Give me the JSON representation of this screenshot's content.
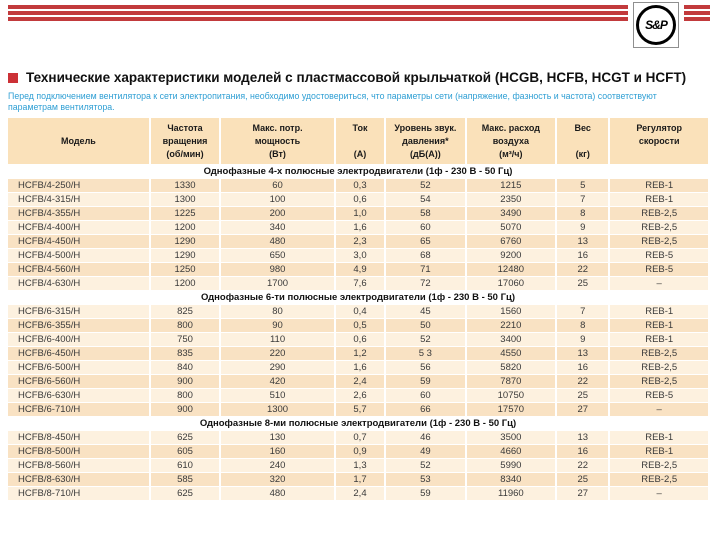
{
  "brand": {
    "logo_text": "S&P"
  },
  "header": {
    "title": "Технические характеристики моделей с пластмассовой крыльчаткой (HCGB, HCFB, HCGT и HCFT)",
    "note": "Перед подключением вентилятора к сети электропитания, необходимо удостовериться, что параметры сети (напряжение, фазность и частота) соответствуют параметрам вентилятора."
  },
  "colors": {
    "accent_red": "#c23a3c",
    "bullet_red": "#cc3136",
    "note_blue": "#2f9fd4",
    "table_header_bg": "#fae1ba",
    "row_dark": "#f9e2c3",
    "row_light": "#fdf1df"
  },
  "table": {
    "columns": [
      {
        "key": "model",
        "lines": [
          "Модель"
        ]
      },
      {
        "key": "speed",
        "lines": [
          "Частота",
          "вращения",
          "(об/мин)"
        ]
      },
      {
        "key": "power",
        "lines": [
          "Макс. потр.",
          "мощность",
          "(Вт)"
        ]
      },
      {
        "key": "current",
        "lines": [
          "Ток",
          "",
          "(А)"
        ]
      },
      {
        "key": "noise",
        "lines": [
          "Уровень звук.",
          "давления*",
          "(дБ(А))"
        ]
      },
      {
        "key": "airflow",
        "lines": [
          "Макс. расход",
          "воздуха",
          "(м³/ч)"
        ]
      },
      {
        "key": "weight",
        "lines": [
          "Вес",
          "",
          "(кг)"
        ]
      },
      {
        "key": "regulator",
        "lines": [
          "Регулятор",
          "скорости"
        ]
      }
    ],
    "sections": [
      {
        "title": "Однофазные 4-х полюсные электродвигатели (1ф - 230 В - 50 Гц)",
        "rows": [
          [
            "HCFB/4-250/H",
            "1330",
            "60",
            "0,3",
            "52",
            "1215",
            "5",
            "REB-1"
          ],
          [
            "HCFB/4-315/H",
            "1300",
            "100",
            "0,6",
            "54",
            "2350",
            "7",
            "REB-1"
          ],
          [
            "HCFB/4-355/H",
            "1225",
            "200",
            "1,0",
            "58",
            "3490",
            "8",
            "REB-2,5"
          ],
          [
            "HCFB/4-400/H",
            "1200",
            "340",
            "1,6",
            "60",
            "5070",
            "9",
            "REB-2,5"
          ],
          [
            "HCFB/4-450/H",
            "1290",
            "480",
            "2,3",
            "65",
            "6760",
            "13",
            "REB-2,5"
          ],
          [
            "HCFB/4-500/H",
            "1290",
            "650",
            "3,0",
            "68",
            "9200",
            "16",
            "REB-5"
          ],
          [
            "HCFB/4-560/H",
            "1250",
            "980",
            "4,9",
            "71",
            "12480",
            "22",
            "REB-5"
          ],
          [
            "HCFB/4-630/H",
            "1200",
            "1700",
            "7,6",
            "72",
            "17060",
            "25",
            "–"
          ]
        ]
      },
      {
        "title": "Однофазные 6-ти полюсные электродвигатели (1ф - 230 В - 50 Гц)",
        "rows": [
          [
            "HCFB/6-315/H",
            "825",
            "80",
            "0,4",
            "45",
            "1560",
            "7",
            "REB-1"
          ],
          [
            "HCFB/6-355/H",
            "800",
            "90",
            "0,5",
            "50",
            "2210",
            "8",
            "REB-1"
          ],
          [
            "HCFB/6-400/H",
            "750",
            "110",
            "0,6",
            "52",
            "3400",
            "9",
            "REB-1"
          ],
          [
            "HCFB/6-450/H",
            "835",
            "220",
            "1,2",
            "5 3",
            "4550",
            "13",
            "REB-2,5"
          ],
          [
            "HCFB/6-500/H",
            "840",
            "290",
            "1,6",
            "56",
            "5820",
            "16",
            "REB-2,5"
          ],
          [
            "HCFB/6-560/H",
            "900",
            "420",
            "2,4",
            "59",
            "7870",
            "22",
            "REB-2,5"
          ],
          [
            "HCFB/6-630/H",
            "800",
            "510",
            "2,6",
            "60",
            "10750",
            "25",
            "REB-5"
          ],
          [
            "HCFB/6-710/H",
            "900",
            "1300",
            "5,7",
            "66",
            "17570",
            "27",
            "–"
          ]
        ]
      },
      {
        "title": "Однофазные 8-ми полюсные электродвигатели (1ф - 230 В - 50 Гц)",
        "rows": [
          [
            "HCFB/8-450/H",
            "625",
            "130",
            "0,7",
            "46",
            "3500",
            "13",
            "REB-1"
          ],
          [
            "HCFB/8-500/H",
            "605",
            "160",
            "0,9",
            "49",
            "4660",
            "16",
            "REB-1"
          ],
          [
            "HCFB/8-560/H",
            "610",
            "240",
            "1,3",
            "52",
            "5990",
            "22",
            "REB-2,5"
          ],
          [
            "HCFB/8-630/H",
            "585",
            "320",
            "1,7",
            "53",
            "8340",
            "25",
            "REB-2,5"
          ],
          [
            "HCFB/8-710/H",
            "625",
            "480",
            "2,4",
            "59",
            "11960",
            "27",
            "–"
          ]
        ]
      }
    ]
  }
}
